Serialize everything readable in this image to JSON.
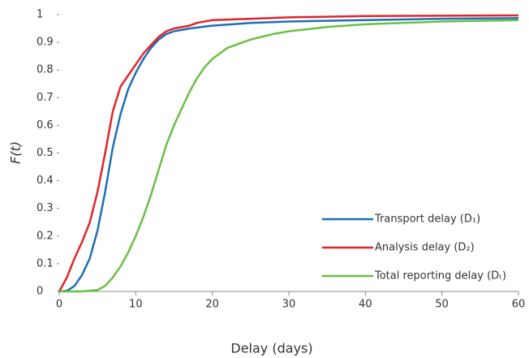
{
  "chart_data": {
    "type": "line",
    "xlabel": "Delay (days)",
    "ylabel": "F(t)",
    "xlim": [
      0,
      60
    ],
    "xticks": [
      0,
      10,
      20,
      30,
      40,
      50,
      60
    ],
    "ylim": [
      0,
      1
    ],
    "yticks": [
      0,
      0.1,
      0.2,
      0.3,
      0.4,
      0.5,
      0.6,
      0.7,
      0.8,
      0.9,
      1
    ],
    "grid": false,
    "legend": "lower right",
    "series": [
      {
        "name": "Transport delay (D₁)",
        "color": "#1f6fb4",
        "x": [
          0,
          1,
          2,
          3,
          4,
          5,
          6,
          7,
          8,
          9,
          10,
          11,
          12,
          13,
          14,
          15,
          17,
          20,
          25,
          30,
          40,
          50,
          60
        ],
        "values": [
          0,
          0.002,
          0.02,
          0.06,
          0.12,
          0.22,
          0.36,
          0.52,
          0.64,
          0.73,
          0.79,
          0.84,
          0.88,
          0.91,
          0.93,
          0.94,
          0.95,
          0.96,
          0.97,
          0.975,
          0.98,
          0.985,
          0.987
        ]
      },
      {
        "name": "Analysis delay (D₂)",
        "color": "#e3242b",
        "x": [
          0,
          1,
          2,
          3,
          4,
          5,
          6,
          7,
          8,
          9,
          10,
          11,
          12,
          13,
          14,
          15,
          17,
          18,
          20,
          25,
          30,
          40,
          60
        ],
        "values": [
          0,
          0.05,
          0.12,
          0.18,
          0.25,
          0.36,
          0.5,
          0.65,
          0.74,
          0.78,
          0.82,
          0.86,
          0.89,
          0.92,
          0.94,
          0.95,
          0.96,
          0.97,
          0.98,
          0.985,
          0.99,
          0.995,
          0.997
        ]
      },
      {
        "name": "Total reporting delay (Dₜ)",
        "color": "#6abf45",
        "x": [
          0,
          3,
          5,
          6,
          7,
          8,
          9,
          10,
          11,
          12,
          13,
          14,
          15,
          16,
          17,
          18,
          19,
          20,
          22,
          25,
          28,
          30,
          35,
          40,
          50,
          60
        ],
        "values": [
          0,
          0,
          0.005,
          0.02,
          0.05,
          0.09,
          0.14,
          0.2,
          0.27,
          0.35,
          0.44,
          0.53,
          0.6,
          0.66,
          0.72,
          0.77,
          0.81,
          0.84,
          0.88,
          0.91,
          0.93,
          0.94,
          0.955,
          0.965,
          0.975,
          0.98
        ]
      }
    ]
  }
}
